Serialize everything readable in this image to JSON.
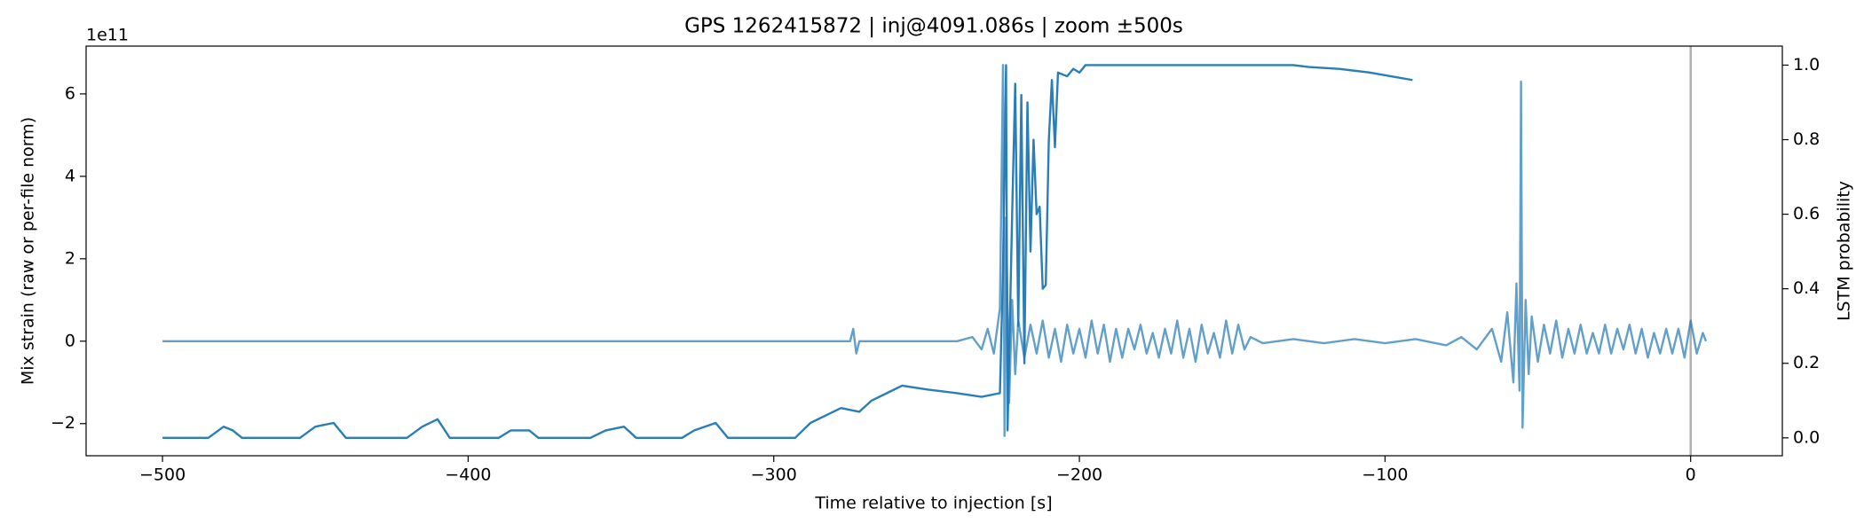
{
  "chart_data": {
    "type": "line",
    "title": "GPS 1262415872 | inj@4091.086s | zoom ±500s",
    "xlabel": "Time relative to injection [s]",
    "ylabel": "Mix strain (raw or per-file norm)",
    "y2label": "LSTM probability",
    "y_offset_label": "1e11",
    "xlim": [
      -525,
      30
    ],
    "ylim": [
      -2.78,
      7.16
    ],
    "y2lim": [
      -0.048,
      1.051
    ],
    "xticks": [
      {
        "value": -500,
        "label": "−500"
      },
      {
        "value": -400,
        "label": "−400"
      },
      {
        "value": -300,
        "label": "−300"
      },
      {
        "value": -200,
        "label": "−200"
      },
      {
        "value": -100,
        "label": "−100"
      },
      0
    ],
    "yticks": [
      {
        "value": -2,
        "label": "−2"
      },
      0,
      2,
      4,
      6
    ],
    "y2ticks": [
      {
        "value": 0,
        "label": "0.0"
      },
      {
        "value": 0.2,
        "label": "0.2"
      },
      {
        "value": 0.4,
        "label": "0.4"
      },
      {
        "value": 0.6,
        "label": "0.6"
      },
      {
        "value": 0.8,
        "label": "0.8"
      },
      {
        "value": 1,
        "label": "1.0"
      }
    ],
    "vline": 0,
    "vline_color": "#b0b0b0",
    "series": [
      {
        "color": "#1f77b4",
        "opacity": 0.7,
        "axis": "y",
        "x": [
          -500,
          -300,
          -275,
          -274,
          -273,
          -272,
          -240,
          -235,
          -232,
          -230,
          -228,
          -226,
          -225,
          -224.5,
          -224,
          -223,
          -222,
          -221,
          -220,
          -218,
          -216,
          -214,
          -212,
          -210,
          -208,
          -206,
          -204,
          -202,
          -200,
          -198,
          -196,
          -194,
          -192,
          -190,
          -188,
          -186,
          -184,
          -182,
          -180,
          -178,
          -176,
          -174,
          -172,
          -170,
          -168,
          -166,
          -164,
          -162,
          -160,
          -158,
          -156,
          -154,
          -152,
          -150,
          -148,
          -146,
          -144,
          -140,
          -130,
          -120,
          -110,
          -100,
          -90,
          -80,
          -75,
          -70,
          -65,
          -62,
          -60,
          -58,
          -57,
          -56,
          -55.5,
          -55,
          -54,
          -53,
          -52,
          -50,
          -48,
          -46,
          -44,
          -42,
          -40,
          -38,
          -36,
          -34,
          -32,
          -30,
          -28,
          -26,
          -24,
          -22,
          -20,
          -18,
          -16,
          -14,
          -12,
          -10,
          -8,
          -6,
          -4,
          -2,
          0,
          2,
          4,
          5
        ],
        "values": [
          0,
          0,
          0,
          0.3,
          -0.3,
          0,
          0,
          0.1,
          -0.2,
          0.3,
          -0.3,
          0.8,
          6.7,
          -2.3,
          3,
          -1.5,
          1,
          -0.8,
          0.5,
          -0.4,
          0.4,
          -0.3,
          0.5,
          -0.4,
          0.3,
          -0.5,
          0.4,
          -0.3,
          0.3,
          -0.4,
          0.5,
          -0.3,
          0.4,
          -0.5,
          0.3,
          -0.4,
          0.3,
          -0.2,
          0.4,
          -0.3,
          0.2,
          -0.4,
          0.3,
          -0.3,
          0.5,
          -0.4,
          0.3,
          -0.5,
          0.4,
          -0.3,
          0.2,
          -0.4,
          0.5,
          -0.3,
          0.4,
          -0.2,
          0.1,
          -0.05,
          0.05,
          -0.05,
          0.05,
          -0.05,
          0.05,
          -0.1,
          0.1,
          -0.2,
          0.3,
          -0.5,
          0.7,
          -1,
          1.4,
          -1.2,
          6.3,
          -2.1,
          1,
          -0.8,
          0.6,
          -0.5,
          0.4,
          -0.3,
          0.5,
          -0.4,
          0.3,
          -0.3,
          0.4,
          -0.3,
          0.2,
          -0.3,
          0.4,
          -0.3,
          0.3,
          -0.2,
          0.4,
          -0.3,
          0.3,
          -0.4,
          0.2,
          -0.3,
          0.3,
          -0.3,
          0.3,
          -0.4,
          0.5,
          -0.3,
          0.2,
          0
        ]
      },
      {
        "color": "#1f77b4",
        "opacity": 0.95,
        "axis": "y2",
        "x": [
          -500,
          -485,
          -480,
          -477,
          -474,
          -455,
          -450,
          -444,
          -440,
          -420,
          -415,
          -410,
          -406,
          -390,
          -386,
          -380,
          -377,
          -360,
          -355,
          -349,
          -345,
          -330,
          -326,
          -319,
          -315,
          -293,
          -288,
          -283,
          -278,
          -272,
          -268,
          -263,
          -258,
          -250,
          -240,
          -232,
          -226,
          -225,
          -224,
          -223.5,
          -222,
          -221,
          -220,
          -219,
          -218,
          -217,
          -216,
          -215,
          -214,
          -213,
          -212,
          -211,
          -210,
          -209,
          -208,
          -207,
          -204,
          -202,
          -200,
          -198,
          -130,
          -125,
          -115,
          -105,
          -98,
          -91
        ],
        "values": [
          0,
          0,
          0.03,
          0.02,
          0,
          0,
          0.03,
          0.04,
          0,
          0,
          0.03,
          0.05,
          0,
          0,
          0.02,
          0.02,
          0,
          0,
          0.02,
          0.03,
          0,
          0,
          0.02,
          0.04,
          0,
          0,
          0.04,
          0.06,
          0.08,
          0.07,
          0.1,
          0.12,
          0.14,
          0.13,
          0.12,
          0.11,
          0.12,
          0.45,
          1.0,
          0.02,
          0.6,
          0.95,
          0.3,
          0.92,
          0.2,
          0.9,
          0.5,
          0.8,
          0.6,
          0.62,
          0.4,
          0.41,
          0.8,
          0.96,
          0.78,
          0.98,
          0.97,
          0.99,
          0.98,
          1.0,
          1.0,
          0.995,
          0.99,
          0.98,
          0.97,
          0.96
        ]
      }
    ]
  }
}
